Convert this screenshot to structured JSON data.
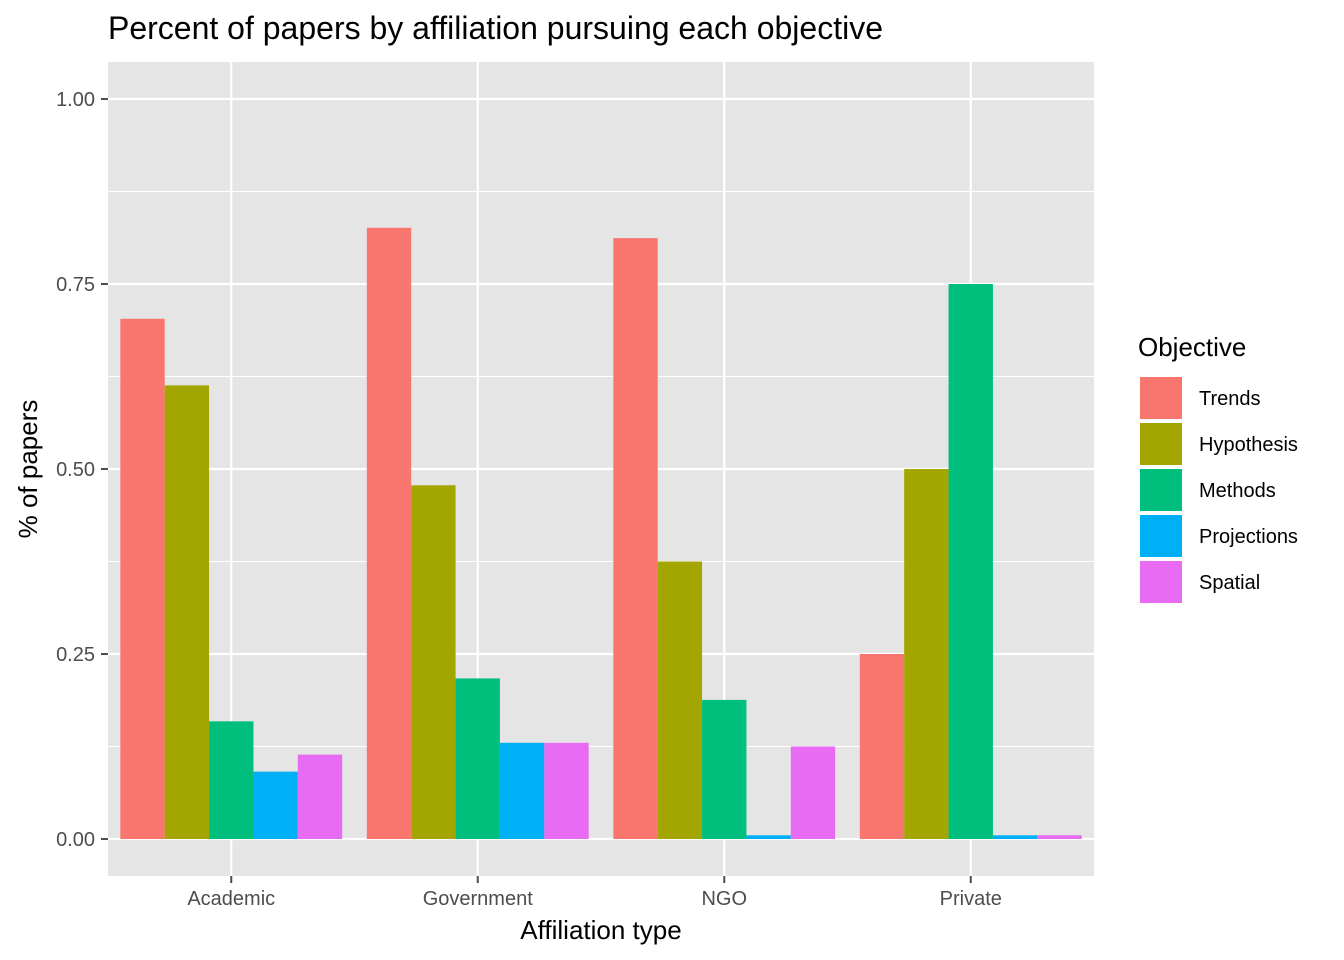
{
  "chart_data": {
    "type": "bar",
    "title": "Percent of papers by affiliation pursuing each objective",
    "xlabel": "Affiliation type",
    "ylabel": "% of papers",
    "categories": [
      "Academic",
      "Government",
      "NGO",
      "Private"
    ],
    "ylim": [
      -0.05,
      1.05
    ],
    "yticks": [
      "0.00",
      "0.25",
      "0.50",
      "0.75",
      "1.00"
    ],
    "ytick_values": [
      0,
      0.25,
      0.5,
      0.75,
      1.0
    ],
    "grid": true,
    "legend": {
      "title": "Objective",
      "position": "right"
    },
    "series": [
      {
        "name": "Trends",
        "color": "#F8766D",
        "values": [
          0.703,
          0.826,
          0.812,
          0.25
        ]
      },
      {
        "name": "Hypothesis",
        "color": "#A3A500",
        "values": [
          0.613,
          0.478,
          0.375,
          0.5
        ]
      },
      {
        "name": "Methods",
        "color": "#00BF7D",
        "values": [
          0.159,
          0.217,
          0.188,
          0.75
        ]
      },
      {
        "name": "Projections",
        "color": "#00B0F6",
        "values": [
          0.091,
          0.13,
          0.005,
          0.005
        ]
      },
      {
        "name": "Spatial",
        "color": "#E76BF3",
        "values": [
          0.114,
          0.13,
          0.125,
          0.005
        ]
      }
    ],
    "colors": {
      "panel": "#E5E5E5",
      "gridline": "#FFFFFF",
      "tick": "#4d4d4d"
    }
  }
}
